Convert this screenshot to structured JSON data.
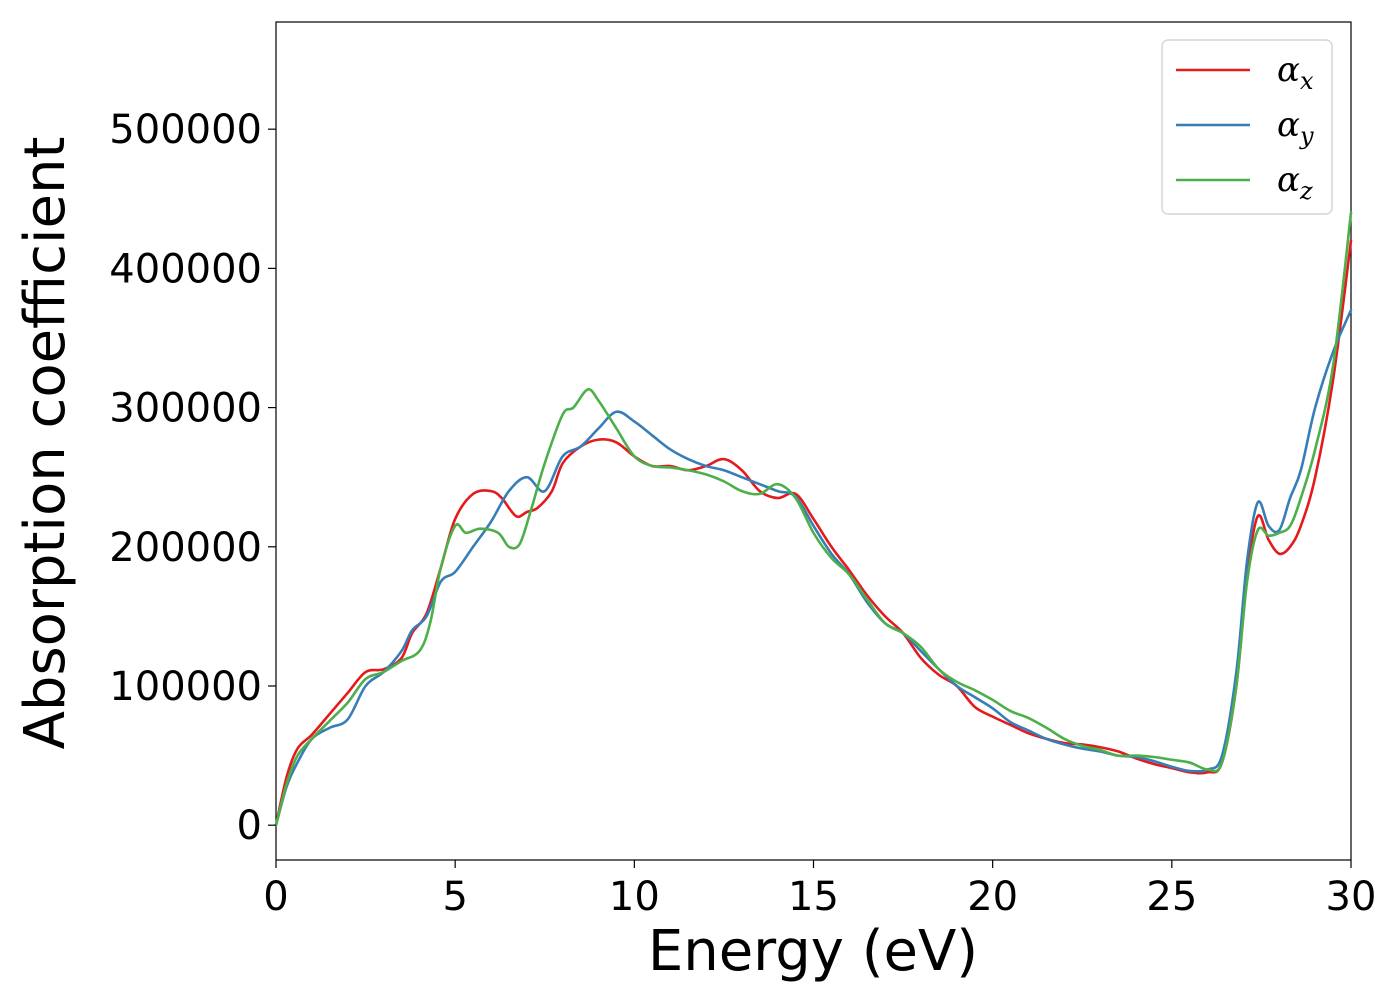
{
  "chart_data": {
    "type": "line",
    "title": "",
    "xlabel": "Energy (eV)",
    "ylabel": "Absorption coefficient",
    "xlim": [
      0,
      30
    ],
    "ylim": [
      -25000,
      577000
    ],
    "xticks": [
      0,
      5,
      10,
      15,
      20,
      25,
      30
    ],
    "xtick_labels": [
      "0",
      "5",
      "10",
      "15",
      "20",
      "25",
      "30"
    ],
    "yticks": [
      0,
      100000,
      200000,
      300000,
      400000,
      500000
    ],
    "ytick_labels": [
      "0",
      "100000",
      "200000",
      "300000",
      "400000",
      "500000"
    ],
    "grid": false,
    "legend_position": "top-right",
    "series": [
      {
        "name": "α",
        "subscript": "x",
        "color": "#e41a1c",
        "x": [
          0,
          0.3,
          0.6,
          1.0,
          1.5,
          2.0,
          2.5,
          3.0,
          3.5,
          3.8,
          4.2,
          4.6,
          5.0,
          5.5,
          6.0,
          6.3,
          6.7,
          7.0,
          7.3,
          7.7,
          8.0,
          8.5,
          9.0,
          9.5,
          10.0,
          10.5,
          11.0,
          11.5,
          12.0,
          12.5,
          13.0,
          13.5,
          14.0,
          14.5,
          15.0,
          15.5,
          16.0,
          16.5,
          17.0,
          17.5,
          18.0,
          18.5,
          19.0,
          19.5,
          20.0,
          20.5,
          21.0,
          21.5,
          22.0,
          22.5,
          23.0,
          23.5,
          24.0,
          24.5,
          25.0,
          25.5,
          26.0,
          26.4,
          26.8,
          27.1,
          27.4,
          27.7,
          28.0,
          28.3,
          28.6,
          29.0,
          29.5,
          30.0
        ],
        "values": [
          0,
          35000,
          55000,
          65000,
          80000,
          95000,
          110000,
          112000,
          120000,
          138000,
          152000,
          185000,
          220000,
          238000,
          240000,
          235000,
          222000,
          225000,
          228000,
          240000,
          260000,
          272000,
          277000,
          275000,
          265000,
          258000,
          258000,
          255000,
          258000,
          263000,
          255000,
          240000,
          235000,
          238000,
          220000,
          200000,
          183000,
          165000,
          150000,
          138000,
          120000,
          108000,
          100000,
          85000,
          78000,
          72000,
          66000,
          62000,
          59000,
          58000,
          56000,
          53000,
          48000,
          44000,
          41000,
          38000,
          38000,
          45000,
          100000,
          180000,
          222000,
          205000,
          195000,
          200000,
          215000,
          250000,
          320000,
          420000
        ]
      },
      {
        "name": "α",
        "subscript": "y",
        "color": "#377eb8",
        "x": [
          0,
          0.3,
          0.6,
          1.0,
          1.5,
          2.0,
          2.5,
          3.0,
          3.5,
          3.8,
          4.2,
          4.6,
          5.0,
          5.5,
          6.0,
          6.5,
          7.0,
          7.5,
          8.0,
          8.5,
          9.0,
          9.5,
          10.0,
          10.5,
          11.0,
          11.5,
          12.0,
          12.5,
          13.0,
          13.5,
          14.0,
          14.5,
          15.0,
          15.5,
          16.0,
          16.5,
          17.0,
          17.5,
          18.0,
          18.5,
          19.0,
          19.5,
          20.0,
          20.5,
          21.0,
          21.5,
          22.0,
          22.5,
          23.0,
          23.5,
          24.0,
          24.5,
          25.0,
          25.5,
          26.0,
          26.4,
          26.8,
          27.1,
          27.4,
          27.7,
          28.0,
          28.3,
          28.6,
          29.0,
          29.5,
          30.0
        ],
        "values": [
          0,
          28000,
          45000,
          62000,
          70000,
          76000,
          100000,
          110000,
          125000,
          140000,
          150000,
          175000,
          182000,
          200000,
          218000,
          240000,
          250000,
          240000,
          265000,
          272000,
          285000,
          297000,
          290000,
          280000,
          270000,
          263000,
          258000,
          255000,
          250000,
          245000,
          240000,
          236000,
          215000,
          195000,
          180000,
          160000,
          145000,
          138000,
          125000,
          112000,
          100000,
          92000,
          84000,
          74000,
          68000,
          62000,
          58000,
          55000,
          53000,
          50000,
          49000,
          46000,
          42000,
          39000,
          40000,
          50000,
          110000,
          190000,
          232000,
          215000,
          212000,
          235000,
          255000,
          300000,
          340000,
          370000
        ]
      },
      {
        "name": "α",
        "subscript": "z",
        "color": "#4daf4a",
        "x": [
          0,
          0.3,
          0.6,
          1.0,
          1.5,
          2.0,
          2.5,
          3.0,
          3.5,
          4.0,
          4.3,
          4.6,
          5.0,
          5.3,
          5.7,
          6.2,
          6.5,
          6.8,
          7.1,
          7.5,
          8.0,
          8.3,
          8.7,
          9.0,
          9.5,
          10.0,
          10.5,
          11.0,
          11.5,
          12.0,
          12.5,
          13.0,
          13.5,
          14.0,
          14.5,
          15.0,
          15.5,
          16.0,
          16.5,
          17.0,
          17.5,
          18.0,
          18.5,
          19.0,
          19.5,
          20.0,
          20.5,
          21.0,
          21.5,
          22.0,
          22.5,
          23.0,
          23.5,
          24.0,
          24.5,
          25.0,
          25.5,
          26.0,
          26.4,
          26.8,
          27.1,
          27.4,
          27.7,
          28.0,
          28.3,
          28.6,
          29.0,
          29.5,
          30.0
        ],
        "values": [
          0,
          30000,
          50000,
          62000,
          75000,
          88000,
          105000,
          110000,
          118000,
          125000,
          145000,
          185000,
          215000,
          210000,
          213000,
          210000,
          200000,
          202000,
          225000,
          260000,
          295000,
          300000,
          313000,
          305000,
          285000,
          265000,
          258000,
          257000,
          255000,
          252000,
          247000,
          240000,
          238000,
          245000,
          235000,
          210000,
          192000,
          180000,
          162000,
          145000,
          138000,
          128000,
          112000,
          103000,
          97000,
          90000,
          82000,
          77000,
          70000,
          62000,
          57000,
          54000,
          50000,
          50000,
          49000,
          47000,
          45000,
          40000,
          45000,
          100000,
          175000,
          212000,
          208000,
          210000,
          215000,
          235000,
          270000,
          330000,
          440000
        ]
      }
    ]
  }
}
